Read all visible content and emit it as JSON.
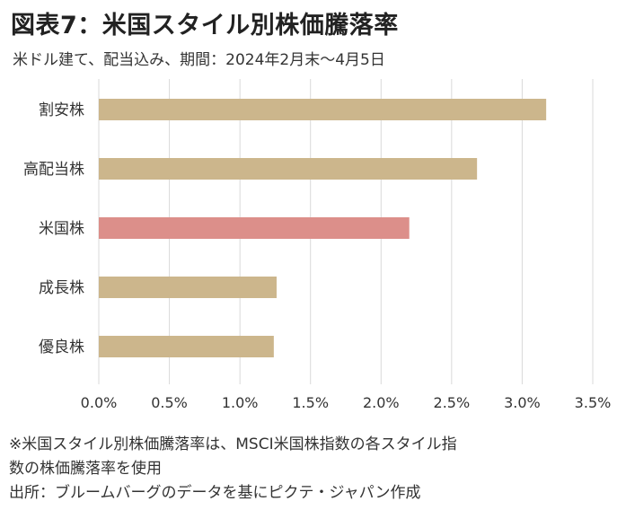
{
  "title": "図表7：米国スタイル別株価騰落率",
  "subtitle": "米ドル建て、配当込み、期間：2024年2月末～4月5日",
  "chart_data": {
    "type": "bar",
    "orientation": "horizontal",
    "categories": [
      "割安株",
      "高配当株",
      "米国株",
      "成長株",
      "優良株"
    ],
    "values": [
      3.17,
      2.68,
      2.2,
      1.26,
      1.24
    ],
    "unit": "%",
    "xlim": [
      0,
      3.5
    ],
    "xticks": [
      "0.0%",
      "0.5%",
      "1.0%",
      "1.5%",
      "2.0%",
      "2.5%",
      "3.0%",
      "3.5%"
    ],
    "grid": "vertical",
    "colors": {
      "default": "#ccb68c",
      "highlight": "#dc8f8a",
      "grid": "#d9d9d9"
    },
    "highlight_category": "米国株"
  },
  "notes": {
    "line1": "※米国スタイル別株価騰落率は、MSCI米国株指数の各スタイル指",
    "line2": "数の株価騰落率を使用",
    "line3": "出所：ブルームバーグのデータを基にピクテ・ジャパン作成"
  }
}
